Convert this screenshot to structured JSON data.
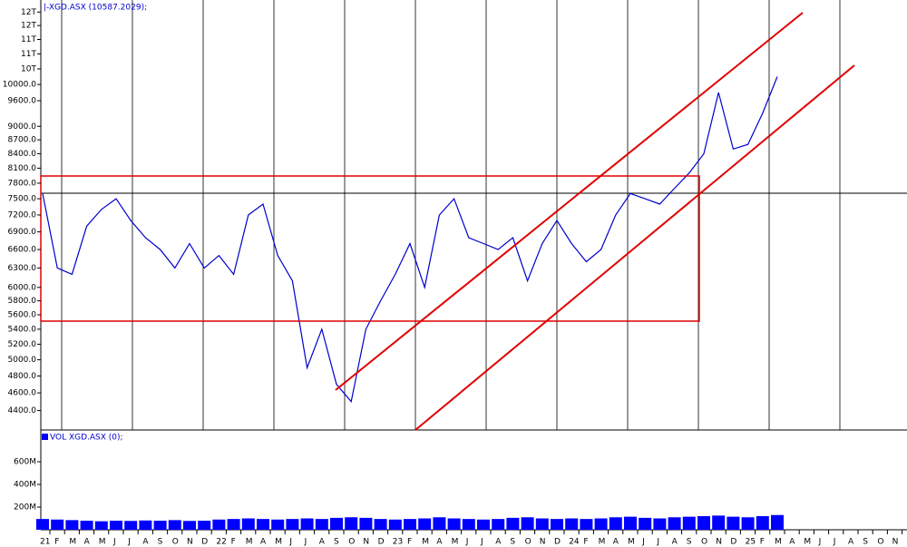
{
  "chart_data": [
    {
      "type": "line",
      "title": "|-XGD.ASX (10587.2029);",
      "log_scale": true,
      "color": "#0000cc",
      "categories": [
        "21",
        "F",
        "M",
        "A",
        "M",
        "J",
        "J",
        "A",
        "S",
        "O",
        "N",
        "D",
        "22",
        "F",
        "M",
        "A",
        "M",
        "J",
        "J",
        "A",
        "S",
        "O",
        "N",
        "D",
        "23",
        "F",
        "M",
        "A",
        "M",
        "J",
        "J",
        "A",
        "S",
        "O",
        "N",
        "D",
        "24",
        "F",
        "M",
        "A",
        "M",
        "J",
        "J",
        "A",
        "S",
        "O",
        "N",
        "D",
        "25",
        "F",
        "M",
        "A",
        "M",
        "J",
        "J",
        "A",
        "S",
        "O",
        "N"
      ],
      "values": [
        7600,
        6300,
        6200,
        7000,
        7300,
        7500,
        7100,
        6800,
        6600,
        6300,
        6700,
        6300,
        6500,
        6200,
        7200,
        7400,
        6500,
        6100,
        4900,
        5400,
        4700,
        4500,
        5400,
        5800,
        6200,
        6700,
        6000,
        7200,
        7500,
        6800,
        6700,
        6600,
        6800,
        6100,
        6700,
        7100,
        6700,
        6400,
        6600,
        7200,
        7600,
        7500,
        7400,
        7700,
        8000,
        8400,
        9800,
        8500,
        8600,
        9300,
        10200,
        null,
        null,
        null,
        null,
        null,
        null,
        null,
        null
      ],
      "ylim": [
        4190,
        12370
      ],
      "yticks": [
        {
          "value": 4400,
          "label": "4400.0"
        },
        {
          "value": 4600,
          "label": "4600.0"
        },
        {
          "value": 4800,
          "label": "4800.0"
        },
        {
          "value": 5000,
          "label": "5000.0"
        },
        {
          "value": 5200,
          "label": "5200.0"
        },
        {
          "value": 5400,
          "label": "5400.0"
        },
        {
          "value": 5600,
          "label": "5600.0"
        },
        {
          "value": 5800,
          "label": "5800.0"
        },
        {
          "value": 6000,
          "label": "6000.0"
        },
        {
          "value": 6300,
          "label": "6300.0"
        },
        {
          "value": 6600,
          "label": "6600.0"
        },
        {
          "value": 6900,
          "label": "6900.0"
        },
        {
          "value": 7200,
          "label": "7200.0"
        },
        {
          "value": 7500,
          "label": "7500.0"
        },
        {
          "value": 7800,
          "label": "7800.0"
        },
        {
          "value": 8100,
          "label": "8100.0"
        },
        {
          "value": 8400,
          "label": "8400.0"
        },
        {
          "value": 8700,
          "label": "8700.0"
        },
        {
          "value": 9000,
          "label": "9000.0"
        },
        {
          "value": 9600,
          "label": "9600.0"
        },
        {
          "value": 10000,
          "label": "10000.0"
        },
        {
          "value": 10400,
          "label": "10T"
        },
        {
          "value": 10800,
          "label": "11T"
        },
        {
          "value": 11200,
          "label": "11T"
        },
        {
          "value": 11600,
          "label": "12T"
        },
        {
          "value": 12000,
          "label": "12T"
        }
      ]
    },
    {
      "type": "bar",
      "title": "VOL XGD.ASX (0);",
      "color": "#0000ff",
      "values": [
        95000000,
        90000000,
        85000000,
        80000000,
        75000000,
        80000000,
        78000000,
        82000000,
        80000000,
        85000000,
        78000000,
        80000000,
        90000000,
        95000000,
        100000000,
        95000000,
        90000000,
        95000000,
        100000000,
        95000000,
        105000000,
        110000000,
        105000000,
        95000000,
        90000000,
        95000000,
        100000000,
        110000000,
        100000000,
        95000000,
        90000000,
        95000000,
        105000000,
        110000000,
        100000000,
        95000000,
        100000000,
        95000000,
        100000000,
        110000000,
        115000000,
        105000000,
        100000000,
        110000000,
        115000000,
        120000000,
        125000000,
        115000000,
        110000000,
        120000000,
        130000000,
        null,
        null,
        null,
        null,
        null,
        null,
        null,
        null
      ],
      "ylim": [
        0,
        856000000
      ],
      "yticks": [
        {
          "value": 200000000,
          "label": "200M"
        },
        {
          "value": 400000000,
          "label": "400M"
        },
        {
          "value": 600000000,
          "label": "600M"
        }
      ]
    }
  ]
}
